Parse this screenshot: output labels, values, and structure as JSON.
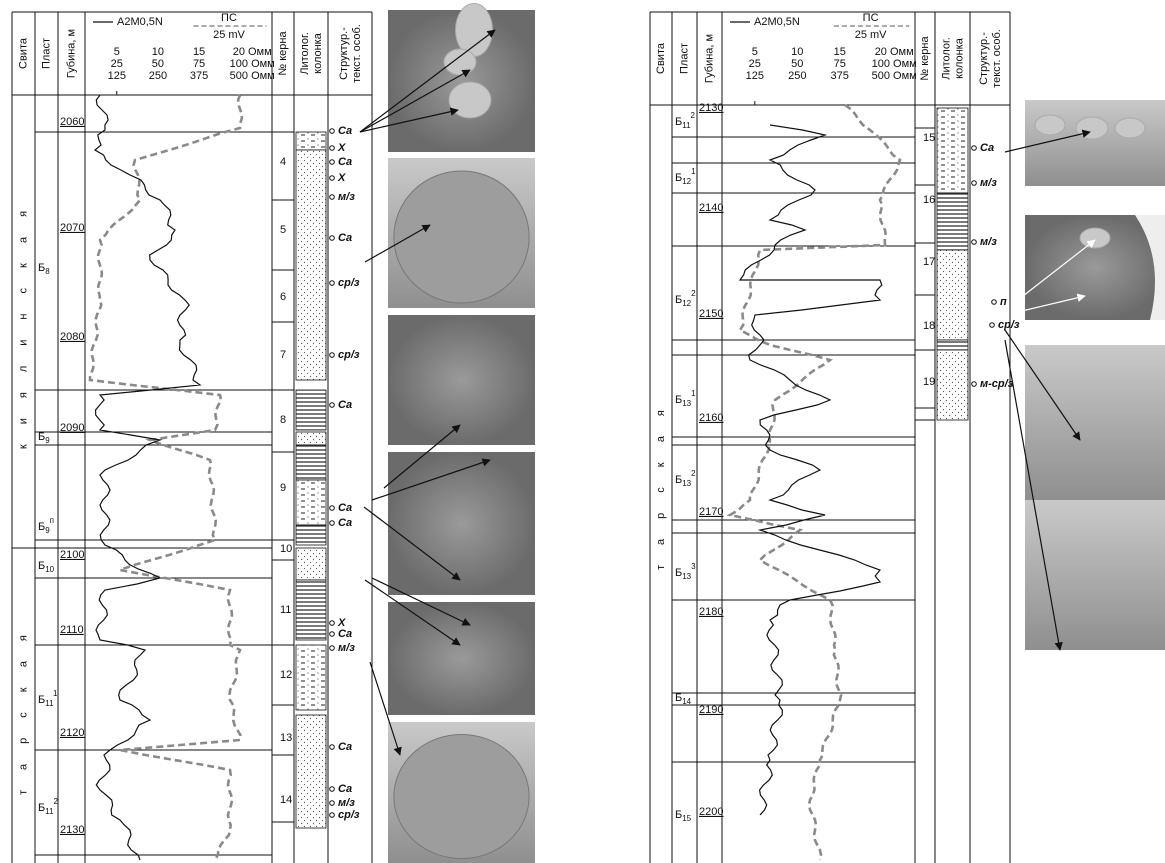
{
  "header": {
    "svita": "Свита",
    "plast": "Пласт",
    "depth": "Губина, м",
    "resist": "A2M0,5N",
    "sp": "ПС",
    "sp_scale": "25 mV",
    "scale_rows": [
      [
        "5",
        "10",
        "15",
        "20 Омм"
      ],
      [
        "25",
        "50",
        "75",
        "100 Омм"
      ],
      [
        "125",
        "250",
        "375",
        "500 Омм"
      ]
    ],
    "core": "№ керна",
    "litho": [
      "Литолог.",
      "колонка"
    ],
    "struct": [
      "Структур.-",
      "текст. особ."
    ]
  },
  "left": {
    "svita": [
      "киялинская",
      "тарская"
    ],
    "layers": [
      {
        "b": "Б",
        "sub": "8"
      },
      {
        "b": "Б",
        "sub": "9"
      },
      {
        "b": "Б",
        "sub": "9",
        "sup": "п"
      },
      {
        "b": "Б",
        "sub": "10"
      },
      {
        "b": "Б",
        "sub": "11",
        "sup": "1"
      },
      {
        "b": "Б",
        "sub": "11",
        "sup": "2"
      }
    ],
    "depths": [
      "2060",
      "2070",
      "2080",
      "2090",
      "2100",
      "2110",
      "2120",
      "2130"
    ],
    "cores": [
      "4",
      "5",
      "6",
      "7",
      "8",
      "9",
      "10",
      "11",
      "12",
      "13",
      "14"
    ],
    "features": [
      "Ca",
      "X",
      "Ca",
      "X",
      "м/з",
      "Ca",
      "ср/з",
      "ср/з",
      "Ca",
      "Ca",
      "Ca",
      "X",
      "Ca",
      "м/з",
      "Ca",
      "Ca",
      "м/з",
      "ср/з"
    ]
  },
  "right": {
    "svita": [
      "тарская"
    ],
    "layers": [
      {
        "b": "Б",
        "sub": "11",
        "sup": "2"
      },
      {
        "b": "Б",
        "sub": "12",
        "sup": "1"
      },
      {
        "b": "Б",
        "sub": "12",
        "sup": "2"
      },
      {
        "b": "Б",
        "sub": "13",
        "sup": "1"
      },
      {
        "b": "Б",
        "sub": "13",
        "sup": "2"
      },
      {
        "b": "Б",
        "sub": "13",
        "sup": "3"
      },
      {
        "b": "Б",
        "sub": "14"
      },
      {
        "b": "Б",
        "sub": "15"
      }
    ],
    "depths": [
      "2130",
      "2140",
      "2150",
      "2160",
      "2170",
      "2180",
      "2190",
      "2200"
    ],
    "cores": [
      "15",
      "16",
      "17",
      "18",
      "19"
    ],
    "features": [
      "Ca",
      "м/з",
      "м/з",
      "п",
      "ср/з",
      "м-ср/з"
    ]
  }
}
